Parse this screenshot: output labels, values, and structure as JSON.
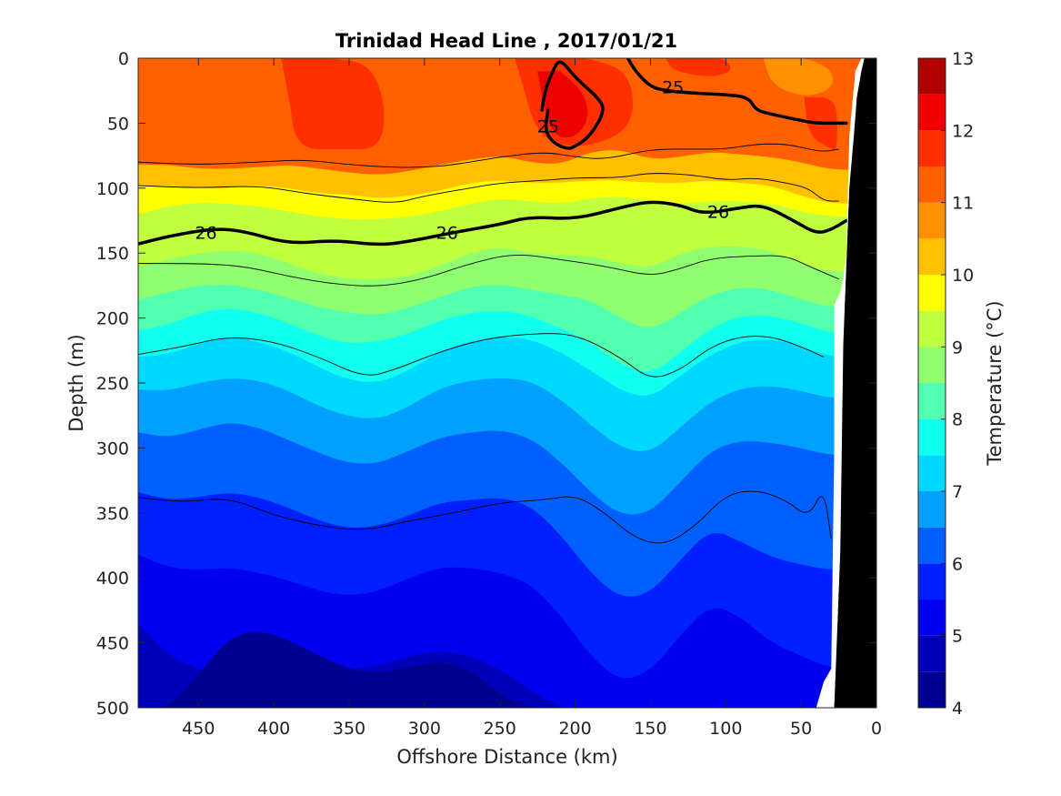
{
  "chart_data": {
    "type": "contour",
    "title": "Trinidad Head Line , 2017/01/21",
    "xlabel": "Offshore Distance (km)",
    "ylabel": "Depth (m)",
    "colorbar_label": "Temperature (°C)",
    "x_reversed": true,
    "y_reversed": true,
    "xlim": [
      0,
      490
    ],
    "ylim": [
      0,
      500
    ],
    "x_ticks": [
      450,
      400,
      350,
      300,
      250,
      200,
      150,
      100,
      50,
      0
    ],
    "y_ticks": [
      0,
      50,
      100,
      150,
      200,
      250,
      300,
      350,
      400,
      450,
      500
    ],
    "colorbar_ticks": [
      4,
      5,
      6,
      7,
      8,
      9,
      10,
      11,
      12,
      13
    ],
    "colorbar_range": [
      4,
      13
    ],
    "colorbar_levels": [
      {
        "from": 4.0,
        "to": 4.5,
        "color": "#00008f"
      },
      {
        "from": 4.5,
        "to": 5.0,
        "color": "#0000b8"
      },
      {
        "from": 5.0,
        "to": 5.5,
        "color": "#0000ef"
      },
      {
        "from": 5.5,
        "to": 6.0,
        "color": "#0020ff"
      },
      {
        "from": 6.0,
        "to": 6.5,
        "color": "#0060ff"
      },
      {
        "from": 6.5,
        "to": 7.0,
        "color": "#00a0ff"
      },
      {
        "from": 7.0,
        "to": 7.5,
        "color": "#00d8ff"
      },
      {
        "from": 7.5,
        "to": 8.0,
        "color": "#10ffef"
      },
      {
        "from": 8.0,
        "to": 8.5,
        "color": "#50ffaf"
      },
      {
        "from": 8.5,
        "to": 9.0,
        "color": "#8fff70"
      },
      {
        "from": 9.0,
        "to": 9.5,
        "color": "#c0ff40"
      },
      {
        "from": 9.5,
        "to": 10.0,
        "color": "#ffff00"
      },
      {
        "from": 10.0,
        "to": 10.5,
        "color": "#ffc000"
      },
      {
        "from": 10.5,
        "to": 11.0,
        "color": "#ff9000"
      },
      {
        "from": 11.0,
        "to": 11.5,
        "color": "#ff6000"
      },
      {
        "from": 11.5,
        "to": 12.0,
        "color": "#ff3000"
      },
      {
        "from": 12.0,
        "to": 12.5,
        "color": "#ef0000"
      },
      {
        "from": 12.5,
        "to": 13.0,
        "color": "#b00000"
      }
    ],
    "temperature_bands": [
      {
        "temp": 11.25,
        "upper_depth": [
          0,
          0,
          0,
          0,
          0,
          0,
          0,
          0,
          0,
          0,
          0,
          0,
          0,
          0,
          0,
          0,
          0,
          0,
          0,
          0,
          0,
          0,
          0,
          0
        ]
      },
      {
        "temp": 10.25,
        "upper_depth": [
          82,
          82,
          85,
          85,
          84,
          82,
          85,
          88,
          90,
          87,
          82,
          78,
          75,
          80,
          82,
          72,
          70,
          78,
          76,
          72,
          74,
          76,
          80,
          86
        ]
      },
      {
        "temp": 9.75,
        "upper_depth": [
          98,
          98,
          100,
          100,
          98,
          100,
          104,
          105,
          108,
          106,
          102,
          96,
          94,
          96,
          96,
          94,
          94,
          96,
          96,
          94,
          96,
          98,
          106,
          112
        ]
      },
      {
        "temp": 9.25,
        "upper_depth": [
          120,
          114,
          111,
          112,
          114,
          118,
          122,
          124,
          124,
          122,
          118,
          112,
          108,
          110,
          112,
          108,
          106,
          110,
          112,
          110,
          110,
          112,
          118,
          122
        ]
      },
      {
        "temp": 8.75,
        "upper_depth": [
          160,
          155,
          150,
          148,
          150,
          158,
          166,
          170,
          170,
          168,
          160,
          150,
          145,
          150,
          152,
          152,
          158,
          162,
          150,
          145,
          145,
          148,
          158,
          165
        ]
      },
      {
        "temp": 8.25,
        "upper_depth": [
          186,
          180,
          175,
          174,
          178,
          185,
          192,
          196,
          198,
          192,
          184,
          176,
          174,
          178,
          182,
          186,
          200,
          210,
          196,
          182,
          176,
          178,
          186,
          192
        ]
      },
      {
        "temp": 7.75,
        "upper_depth": [
          210,
          205,
          196,
          192,
          196,
          204,
          214,
          220,
          218,
          212,
          202,
          196,
          194,
          198,
          208,
          218,
          236,
          244,
          226,
          208,
          198,
          198,
          204,
          212
        ]
      },
      {
        "temp": 7.25,
        "upper_depth": [
          230,
          228,
          220,
          214,
          218,
          226,
          238,
          248,
          250,
          240,
          226,
          218,
          214,
          216,
          226,
          240,
          256,
          262,
          244,
          228,
          218,
          216,
          222,
          230
        ]
      },
      {
        "temp": 6.75,
        "upper_depth": [
          255,
          256,
          250,
          246,
          248,
          256,
          268,
          276,
          278,
          268,
          254,
          248,
          246,
          248,
          262,
          282,
          300,
          304,
          284,
          264,
          254,
          252,
          256,
          262
        ]
      },
      {
        "temp": 6.25,
        "upper_depth": [
          288,
          292,
          286,
          280,
          284,
          294,
          304,
          312,
          312,
          302,
          292,
          288,
          286,
          292,
          310,
          334,
          352,
          350,
          326,
          302,
          294,
          296,
          300,
          306
        ]
      },
      {
        "temp": 5.75,
        "upper_depth": [
          334,
          340,
          338,
          334,
          338,
          346,
          356,
          362,
          360,
          352,
          342,
          340,
          338,
          344,
          366,
          396,
          416,
          412,
          386,
          362,
          372,
          384,
          390,
          394
        ]
      },
      {
        "temp": 5.25,
        "upper_depth": [
          382,
          392,
          394,
          392,
          396,
          402,
          410,
          414,
          410,
          400,
          392,
          392,
          396,
          404,
          428,
          460,
          480,
          472,
          444,
          420,
          430,
          450,
          460,
          470
        ]
      },
      {
        "temp": 4.75,
        "upper_depth": [
          435,
          460,
          470,
          478,
          480,
          478,
          476,
          470,
          468,
          460,
          456,
          460,
          470,
          486,
          500,
          500,
          500,
          500,
          500,
          500,
          500,
          500,
          500,
          500
        ]
      },
      {
        "temp": 4.25,
        "upper_depth": [
          500,
          500,
          475,
          446,
          440,
          448,
          460,
          470,
          474,
          468,
          464,
          470,
          490,
          500,
          500,
          500,
          500,
          500,
          500,
          500,
          500,
          500,
          500,
          500
        ]
      }
    ],
    "band_x_km": [
      490,
      470,
      450,
      430,
      410,
      390,
      370,
      350,
      330,
      310,
      290,
      270,
      250,
      230,
      210,
      190,
      170,
      150,
      130,
      110,
      90,
      70,
      50,
      30
    ],
    "warm_patches": [
      {
        "temp": 11.75,
        "x": [
          395,
          390,
          385,
          355,
          330,
          325,
          335,
          360,
          380
        ],
        "y": [
          0,
          30,
          70,
          70,
          70,
          40,
          5,
          0,
          0
        ]
      },
      {
        "temp": 11.75,
        "x": [
          240,
          235,
          225,
          200,
          170,
          160,
          165,
          190,
          210,
          230
        ],
        "y": [
          0,
          20,
          60,
          70,
          60,
          40,
          10,
          0,
          0,
          0
        ]
      },
      {
        "temp": 12.25,
        "x": [
          225,
          222,
          215,
          200,
          190,
          195,
          210
        ],
        "y": [
          10,
          30,
          60,
          62,
          45,
          25,
          10
        ]
      },
      {
        "temp": 11.75,
        "x": [
          140,
          135,
          110,
          95,
          100,
          120
        ],
        "y": [
          0,
          10,
          15,
          10,
          0,
          0
        ]
      },
      {
        "temp": 10.75,
        "x": [
          75,
          70,
          50,
          30,
          28,
          45,
          60
        ],
        "y": [
          0,
          20,
          30,
          25,
          10,
          0,
          0
        ]
      },
      {
        "temp": 11.75,
        "x": [
          48,
          45,
          30,
          26,
          26,
          35
        ],
        "y": [
          30,
          60,
          70,
          70,
          35,
          30
        ]
      }
    ],
    "contour_lines": [
      {
        "label": "25",
        "x": [
          165,
          160,
          150,
          140,
          120,
          100,
          85,
          80,
          70,
          50,
          40,
          20
        ],
        "y": [
          0,
          10,
          22,
          25,
          27,
          28,
          30,
          40,
          43,
          48,
          50,
          50
        ]
      },
      {
        "label": "25",
        "x": [
          218,
          220,
          215,
          205,
          200,
          190,
          180,
          185,
          200,
          210,
          215,
          220,
          222
        ],
        "y": [
          40,
          55,
          65,
          70,
          68,
          60,
          40,
          30,
          15,
          0,
          10,
          25,
          40
        ]
      },
      {
        "label": "26",
        "x": [
          490,
          470,
          440,
          420,
          390,
          360,
          330,
          310,
          280,
          250,
          230,
          200,
          170,
          150,
          130,
          115,
          90,
          75,
          55,
          40,
          30,
          20
        ],
        "y": [
          143,
          137,
          131,
          133,
          143,
          140,
          144,
          141,
          134,
          128,
          122,
          124,
          115,
          110,
          113,
          120,
          115,
          113,
          125,
          135,
          132,
          125
        ]
      }
    ],
    "contour_labels": [
      {
        "label": "25",
        "x": 135,
        "y": 22
      },
      {
        "label": "25",
        "x": 218,
        "y": 52
      },
      {
        "label": "26",
        "x": 445,
        "y": 134
      },
      {
        "label": "26",
        "x": 285,
        "y": 134
      },
      {
        "label": "26",
        "x": 105,
        "y": 118
      }
    ],
    "thin_contours": [
      {
        "x": [
          490,
          450,
          410,
          380,
          350,
          320,
          300,
          280,
          250,
          220,
          200,
          180,
          150,
          120,
          100,
          80,
          60,
          45,
          35,
          25
        ],
        "y": [
          80,
          82,
          80,
          78,
          82,
          84,
          84,
          82,
          76,
          72,
          76,
          78,
          70,
          70,
          70,
          66,
          66,
          70,
          72,
          70
        ]
      },
      {
        "x": [
          490,
          450,
          410,
          380,
          350,
          320,
          300,
          270,
          250,
          220,
          200,
          170,
          150,
          120,
          100,
          80,
          60,
          45,
          35,
          25
        ],
        "y": [
          98,
          100,
          98,
          104,
          108,
          112,
          106,
          100,
          96,
          94,
          92,
          92,
          88,
          90,
          94,
          92,
          96,
          100,
          110,
          110
        ]
      },
      {
        "x": [
          490,
          450,
          420,
          390,
          360,
          330,
          300,
          270,
          240,
          210,
          180,
          150,
          130,
          110,
          80,
          60,
          45,
          35,
          25
        ],
        "y": [
          158,
          158,
          160,
          168,
          174,
          176,
          170,
          158,
          150,
          155,
          160,
          168,
          162,
          154,
          152,
          152,
          160,
          165,
          170
        ]
      },
      {
        "x": [
          490,
          460,
          430,
          400,
          370,
          340,
          320,
          290,
          260,
          230,
          200,
          170,
          150,
          130,
          110,
          90,
          70,
          50,
          35
        ],
        "y": [
          228,
          222,
          214,
          218,
          230,
          246,
          240,
          226,
          216,
          212,
          212,
          230,
          248,
          240,
          222,
          214,
          214,
          222,
          230
        ]
      },
      {
        "x": [
          490,
          460,
          430,
          400,
          370,
          340,
          310,
          280,
          250,
          220,
          200,
          180,
          160,
          140,
          120,
          100,
          80,
          60,
          45,
          35,
          30
        ],
        "y": [
          338,
          342,
          338,
          352,
          360,
          364,
          356,
          350,
          342,
          340,
          336,
          350,
          370,
          375,
          360,
          336,
          332,
          340,
          354,
          330,
          370
        ]
      }
    ],
    "land_mask": {
      "x": [
        28,
        26,
        24,
        23,
        22,
        20,
        18,
        15,
        13,
        10,
        8,
        6,
        4,
        0,
        0,
        28
      ],
      "y": [
        500,
        440,
        380,
        300,
        220,
        160,
        100,
        60,
        30,
        10,
        0,
        0,
        0,
        0,
        500,
        500
      ]
    },
    "no_data_mask": {
      "x": [
        40,
        35,
        30,
        28,
        28,
        24,
        22,
        20,
        18,
        14,
        10,
        8,
        28,
        40
      ],
      "y": [
        500,
        480,
        470,
        300,
        190,
        180,
        170,
        150,
        60,
        10,
        0,
        0,
        500,
        500
      ]
    }
  }
}
